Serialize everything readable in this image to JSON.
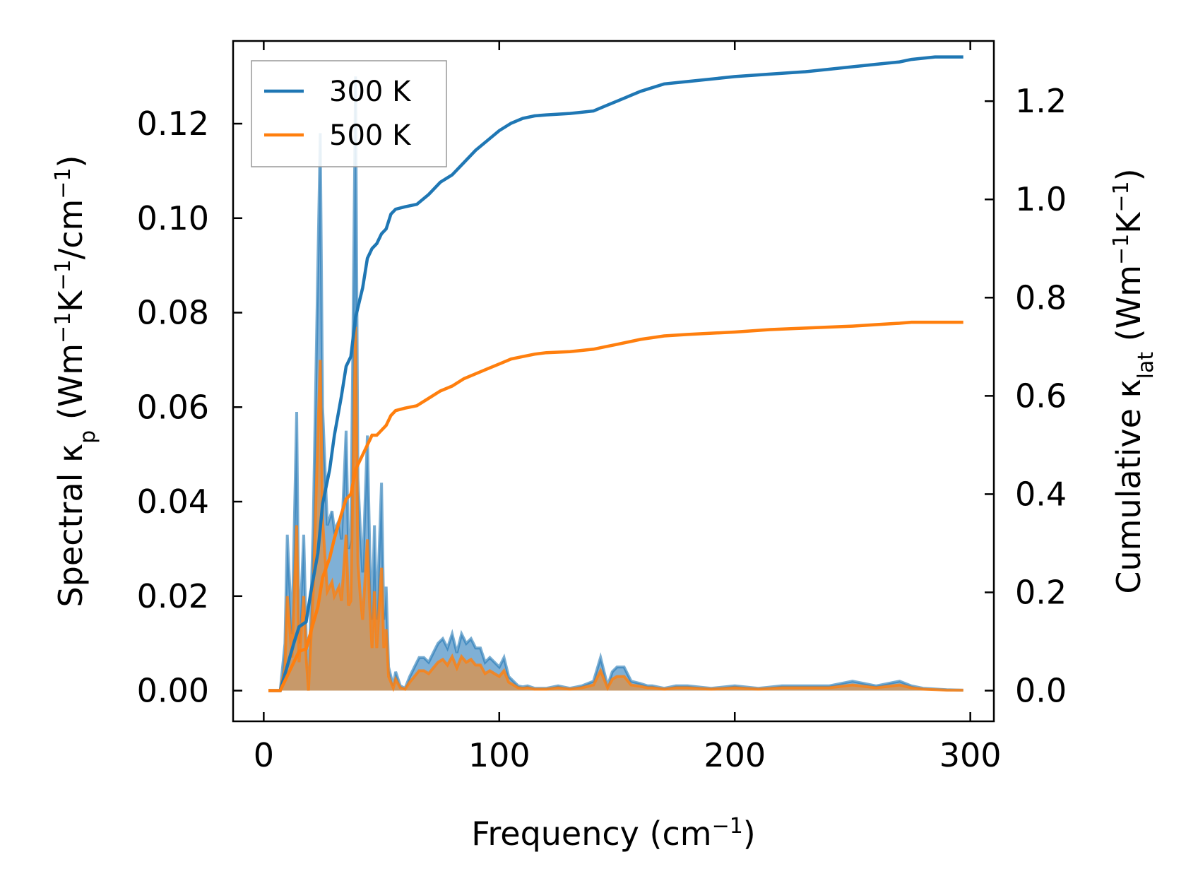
{
  "chart_data": {
    "type": "line",
    "xlabel": "Frequency (cm",
    "xlabel_sup": "−1",
    "xlabel_tail": ")",
    "ylabel_left": {
      "pre": "Spectral κ",
      "sub": "p",
      "unit": " (Wm",
      "sup1": "−1",
      "mid": "K",
      "sup2": "−1",
      "mid2": "/cm",
      "sup3": "−1",
      "tail": ")"
    },
    "ylabel_right": {
      "pre": "Cumulative κ",
      "sub": "lat",
      "unit": " (Wm",
      "sup1": "−1",
      "mid": "K",
      "sup2": "−1",
      "tail": ")"
    },
    "xlim": [
      -13,
      310
    ],
    "ylim_left": [
      -0.0065,
      0.1375
    ],
    "ylim_right": [
      -0.0625,
      1.3225
    ],
    "xticks": [
      0,
      100,
      200,
      300
    ],
    "yticks_left": [
      "0.00",
      "0.02",
      "0.04",
      "0.06",
      "0.08",
      "0.10",
      "0.12"
    ],
    "yticks_left_values": [
      0,
      0.02,
      0.04,
      0.06,
      0.08,
      0.1,
      0.12
    ],
    "yticks_right": [
      "0.0",
      "0.2",
      "0.4",
      "0.6",
      "0.8",
      "1.0",
      "1.2"
    ],
    "yticks_right_values": [
      0,
      0.2,
      0.4,
      0.6,
      0.8,
      1.0,
      1.2
    ],
    "legend": {
      "position": "upper-left",
      "entries": [
        "300 K",
        "500 K"
      ]
    },
    "colors": {
      "300K": "#1f77b4",
      "500K": "#ff7f0e",
      "fill300": "#7fb0d6",
      "fill500": "#c7996a"
    },
    "spectral_300K": {
      "x": [
        2,
        7,
        9,
        10,
        12,
        14,
        15,
        17,
        18,
        19,
        21,
        23,
        24,
        25,
        27,
        29,
        30,
        32,
        33,
        35,
        36,
        37,
        39,
        40,
        41,
        42,
        44,
        45,
        46,
        47,
        48,
        50,
        51,
        52,
        53,
        55,
        56,
        58,
        60,
        62,
        64,
        66,
        68,
        70,
        72,
        74,
        76,
        78,
        80,
        82,
        84,
        86,
        88,
        90,
        92,
        94,
        96,
        98,
        100,
        102,
        104,
        106,
        108,
        110,
        112,
        115,
        120,
        125,
        130,
        135,
        140,
        143,
        146,
        148,
        150,
        153,
        156,
        160,
        163,
        165,
        170,
        175,
        180,
        190,
        200,
        210,
        220,
        230,
        240,
        250,
        255,
        260,
        270,
        275,
        280,
        290,
        297
      ],
      "y": [
        0,
        0,
        0.01,
        0.033,
        0.012,
        0.059,
        0.01,
        0.033,
        0.012,
        0,
        0.035,
        0.09,
        0.118,
        0.06,
        0.035,
        0.038,
        0.034,
        0.036,
        0.032,
        0.055,
        0.03,
        0.032,
        0.13,
        0.045,
        0.034,
        0.025,
        0.054,
        0.03,
        0.015,
        0.035,
        0.015,
        0.044,
        0.015,
        0.022,
        0.005,
        0.001,
        0.004,
        0.001,
        0.0005,
        0.003,
        0.005,
        0.007,
        0.007,
        0.006,
        0.008,
        0.01,
        0.011,
        0.009,
        0.012,
        0.008,
        0.012,
        0.01,
        0.011,
        0.009,
        0.009,
        0.006,
        0.007,
        0.006,
        0.005,
        0.007,
        0.003,
        0.002,
        0.001,
        0.0008,
        0.001,
        0.0005,
        0.0005,
        0.001,
        0.0005,
        0.001,
        0.002,
        0.007,
        0.001,
        0.004,
        0.005,
        0.005,
        0.002,
        0.0015,
        0.001,
        0.001,
        0.0005,
        0.001,
        0.001,
        0.0005,
        0.001,
        0.0005,
        0.001,
        0.001,
        0.001,
        0.002,
        0.0015,
        0.001,
        0.002,
        0.001,
        0.0005,
        0.0002,
        0.0001
      ]
    },
    "spectral_500K": {
      "x": [
        2,
        7,
        9,
        10,
        12,
        14,
        15,
        17,
        18,
        19,
        21,
        23,
        24,
        25,
        27,
        29,
        30,
        32,
        33,
        35,
        36,
        37,
        39,
        40,
        41,
        42,
        44,
        45,
        46,
        47,
        48,
        50,
        51,
        52,
        53,
        55,
        56,
        58,
        60,
        62,
        64,
        66,
        68,
        70,
        72,
        74,
        76,
        78,
        80,
        82,
        84,
        86,
        88,
        90,
        92,
        94,
        96,
        98,
        100,
        102,
        104,
        106,
        108,
        110,
        112,
        115,
        120,
        125,
        130,
        135,
        140,
        143,
        146,
        148,
        150,
        153,
        156,
        160,
        163,
        165,
        170,
        175,
        180,
        190,
        200,
        210,
        220,
        230,
        240,
        250,
        255,
        260,
        270,
        275,
        280,
        290,
        297
      ],
      "y": [
        0,
        0,
        0.005,
        0.02,
        0.007,
        0.035,
        0.006,
        0.02,
        0.007,
        0,
        0.021,
        0.054,
        0.07,
        0.036,
        0.021,
        0.023,
        0.02,
        0.022,
        0.019,
        0.033,
        0.018,
        0.019,
        0.077,
        0.027,
        0.02,
        0.015,
        0.032,
        0.018,
        0.009,
        0.021,
        0.009,
        0.026,
        0.009,
        0.013,
        0.003,
        0.0006,
        0.0024,
        0.0006,
        0.0003,
        0.0018,
        0.003,
        0.0042,
        0.0042,
        0.0036,
        0.0048,
        0.006,
        0.0066,
        0.0054,
        0.0072,
        0.0048,
        0.0072,
        0.006,
        0.0066,
        0.0054,
        0.0054,
        0.0036,
        0.0042,
        0.0036,
        0.003,
        0.0042,
        0.0018,
        0.0012,
        0.0006,
        0.0005,
        0.0006,
        0.0003,
        0.0003,
        0.0006,
        0.0003,
        0.0006,
        0.0012,
        0.0042,
        0.0006,
        0.0024,
        0.003,
        0.003,
        0.0012,
        0.0009,
        0.0006,
        0.0006,
        0.0003,
        0.0006,
        0.0006,
        0.0003,
        0.0006,
        0.0003,
        0.0006,
        0.0006,
        0.0006,
        0.0012,
        0.0009,
        0.0006,
        0.0012,
        0.0006,
        0.0003,
        0.0001,
        0.0001
      ]
    },
    "cumulative_300K": {
      "x": [
        2,
        7,
        10,
        13,
        15,
        18,
        20,
        23,
        25,
        28,
        30,
        33,
        35,
        37,
        39,
        40,
        42,
        44,
        46,
        48,
        50,
        52,
        54,
        56,
        60,
        65,
        70,
        75,
        80,
        85,
        90,
        95,
        100,
        105,
        110,
        115,
        120,
        130,
        140,
        145,
        150,
        160,
        170,
        180,
        200,
        215,
        230,
        250,
        260,
        270,
        275,
        285,
        297
      ],
      "y": [
        0,
        0,
        0.05,
        0.1,
        0.13,
        0.14,
        0.2,
        0.28,
        0.38,
        0.45,
        0.52,
        0.6,
        0.66,
        0.68,
        0.76,
        0.78,
        0.82,
        0.88,
        0.9,
        0.91,
        0.93,
        0.94,
        0.97,
        0.98,
        0.985,
        0.99,
        1.01,
        1.035,
        1.05,
        1.075,
        1.1,
        1.12,
        1.14,
        1.155,
        1.165,
        1.17,
        1.172,
        1.175,
        1.18,
        1.19,
        1.2,
        1.22,
        1.235,
        1.24,
        1.25,
        1.255,
        1.26,
        1.27,
        1.275,
        1.28,
        1.285,
        1.29,
        1.29
      ]
    },
    "cumulative_500K": {
      "x": [
        2,
        7,
        10,
        13,
        15,
        18,
        20,
        23,
        25,
        28,
        30,
        33,
        35,
        37,
        39,
        40,
        42,
        44,
        46,
        48,
        50,
        52,
        54,
        56,
        60,
        65,
        70,
        75,
        80,
        85,
        90,
        95,
        100,
        105,
        110,
        115,
        120,
        130,
        140,
        145,
        150,
        160,
        170,
        180,
        200,
        215,
        230,
        250,
        260,
        270,
        275,
        285,
        297
      ],
      "y": [
        0,
        0,
        0.03,
        0.06,
        0.08,
        0.085,
        0.12,
        0.17,
        0.23,
        0.27,
        0.31,
        0.36,
        0.39,
        0.4,
        0.45,
        0.46,
        0.48,
        0.5,
        0.52,
        0.52,
        0.53,
        0.54,
        0.56,
        0.57,
        0.575,
        0.58,
        0.595,
        0.61,
        0.62,
        0.635,
        0.645,
        0.655,
        0.665,
        0.675,
        0.68,
        0.685,
        0.688,
        0.69,
        0.695,
        0.7,
        0.705,
        0.715,
        0.722,
        0.725,
        0.73,
        0.735,
        0.738,
        0.742,
        0.745,
        0.748,
        0.75,
        0.75,
        0.75
      ]
    }
  }
}
